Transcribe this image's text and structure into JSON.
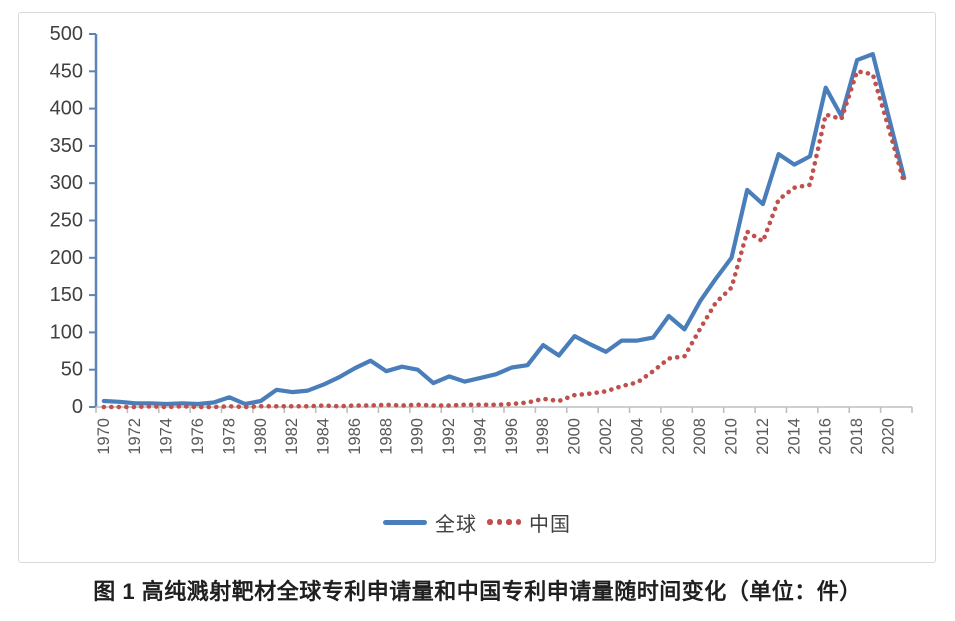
{
  "caption": "图 1  高纯溅射靶材全球专利申请量和中国专利申请量随时间变化（单位：件）",
  "colors": {
    "global_series": "#4a7ebb",
    "china_series": "#c0504d",
    "y_axis": "#5b84b8",
    "x_axis": "#bfbfbf",
    "tick_label": "#595959",
    "frame_border": "#d9d9d9"
  },
  "chart_data": {
    "type": "line",
    "title": "",
    "xlabel": "",
    "ylabel": "",
    "ylim": [
      0,
      500
    ],
    "ytick_step": 50,
    "grid": false,
    "legend_position": "bottom",
    "x": [
      1970,
      1971,
      1972,
      1973,
      1974,
      1975,
      1976,
      1977,
      1978,
      1979,
      1980,
      1981,
      1982,
      1983,
      1984,
      1985,
      1986,
      1987,
      1988,
      1989,
      1990,
      1991,
      1992,
      1993,
      1994,
      1995,
      1996,
      1997,
      1998,
      1999,
      2000,
      2001,
      2002,
      2003,
      2004,
      2005,
      2006,
      2007,
      2008,
      2009,
      2010,
      2011,
      2012,
      2013,
      2014,
      2015,
      2016,
      2017,
      2018,
      2019,
      2020,
      2021
    ],
    "xtick_labels": [
      "1970",
      "1972",
      "1974",
      "1976",
      "1978",
      "1980",
      "1982",
      "1984",
      "1986",
      "1988",
      "1990",
      "1992",
      "1994",
      "1996",
      "1998",
      "2000",
      "2002",
      "2004",
      "2006",
      "2008",
      "2010",
      "2012",
      "2014",
      "2016",
      "2018",
      "2020"
    ],
    "series": [
      {
        "name": "全球",
        "style": "solid",
        "values": [
          8,
          7,
          5,
          5,
          4,
          5,
          4,
          6,
          13,
          4,
          8,
          23,
          20,
          22,
          30,
          40,
          52,
          62,
          48,
          54,
          50,
          32,
          41,
          34,
          39,
          44,
          53,
          56,
          83,
          69,
          95,
          84,
          74,
          89,
          89,
          93,
          122,
          104,
          142,
          172,
          200,
          291,
          272,
          339,
          325,
          336,
          428,
          390,
          465,
          473,
          390,
          307
        ]
      },
      {
        "name": "中国",
        "style": "dotted",
        "values": [
          0,
          0,
          0,
          1,
          0,
          1,
          0,
          0,
          1,
          0,
          1,
          1,
          1,
          1,
          2,
          1,
          2,
          2,
          3,
          2,
          3,
          2,
          2,
          3,
          3,
          3,
          4,
          6,
          11,
          8,
          16,
          18,
          21,
          28,
          33,
          48,
          65,
          68,
          105,
          140,
          160,
          235,
          222,
          278,
          294,
          298,
          392,
          386,
          450,
          446,
          375,
          300
        ]
      }
    ]
  }
}
